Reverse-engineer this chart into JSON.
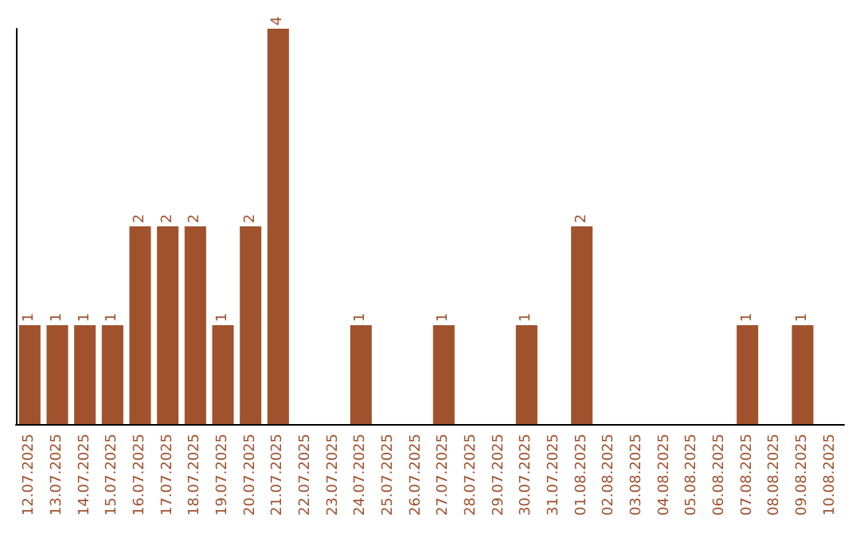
{
  "chart_data": {
    "type": "bar",
    "categories": [
      "12.07.2025",
      "13.07.2025",
      "14.07.2025",
      "15.07.2025",
      "16.07.2025",
      "17.07.2025",
      "18.07.2025",
      "19.07.2025",
      "20.07.2025",
      "21.07.2025",
      "22.07.2025",
      "23.07.2025",
      "24.07.2025",
      "25.07.2025",
      "26.07.2025",
      "27.07.2025",
      "28.07.2025",
      "29.07.2025",
      "30.07.2025",
      "31.07.2025",
      "01.08.2025",
      "02.08.2025",
      "03.08.2025",
      "04.08.2025",
      "05.08.2025",
      "06.08.2025",
      "07.08.2025",
      "08.08.2025",
      "09.08.2025",
      "10.08.2025"
    ],
    "values": [
      1,
      1,
      1,
      1,
      2,
      2,
      2,
      1,
      2,
      4,
      0,
      0,
      1,
      0,
      0,
      1,
      0,
      0,
      1,
      0,
      2,
      0,
      0,
      0,
      0,
      0,
      1,
      0,
      1,
      0
    ],
    "value_labels": [
      "1",
      "1",
      "1",
      "1",
      "2",
      "2",
      "2",
      "1",
      "2",
      "4",
      null,
      null,
      "1",
      null,
      null,
      "1",
      null,
      null,
      "1",
      null,
      "2",
      null,
      null,
      null,
      null,
      null,
      "1",
      null,
      "1",
      null
    ],
    "color": "#a0522d",
    "ylim": [
      0,
      4
    ],
    "tick_labels": "x"
  }
}
